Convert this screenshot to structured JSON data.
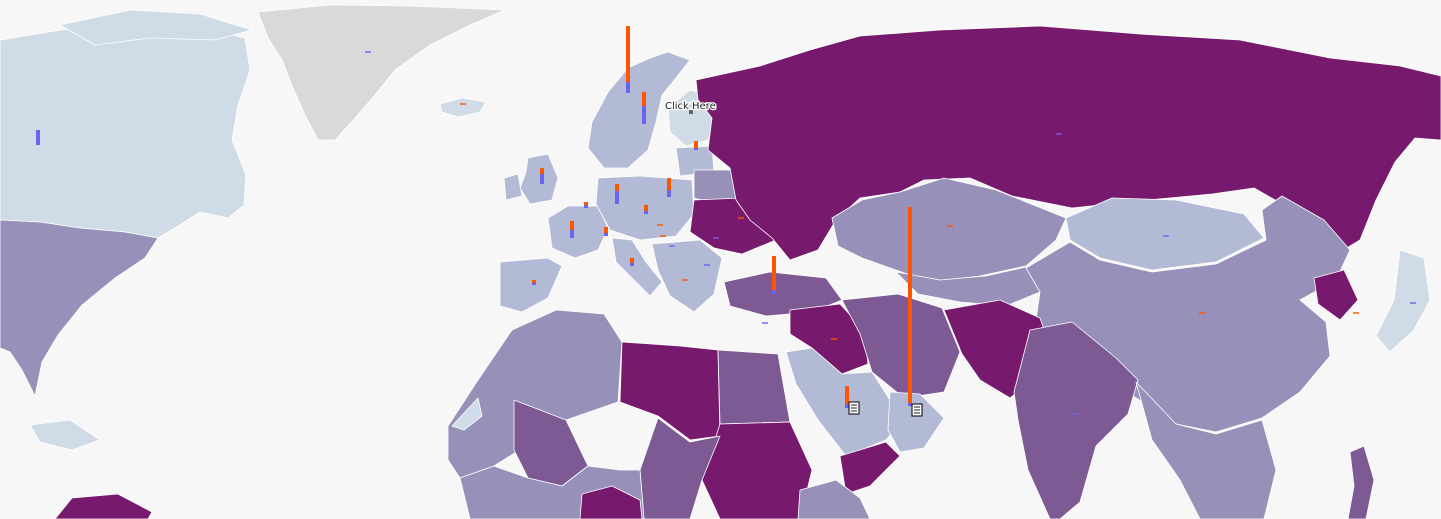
{
  "map": {
    "callout": {
      "label": "Click Here"
    },
    "colors": {
      "ocean": "#f7f7f7",
      "no_data": "#d9d9d9",
      "level_1": "#cfdbe6",
      "level_2": "#b3bad6",
      "level_3": "#9790b9",
      "level_4": "#7e5a95",
      "level_5": "#771a6e",
      "bar_orange": "#fe5500",
      "bar_blue": "#6d63ee"
    },
    "bar_series": [
      {
        "color": "bar_orange"
      },
      {
        "color": "bar_blue"
      }
    ],
    "icons": [
      "document-icon",
      "document-icon",
      "location-pin-icon"
    ]
  }
}
